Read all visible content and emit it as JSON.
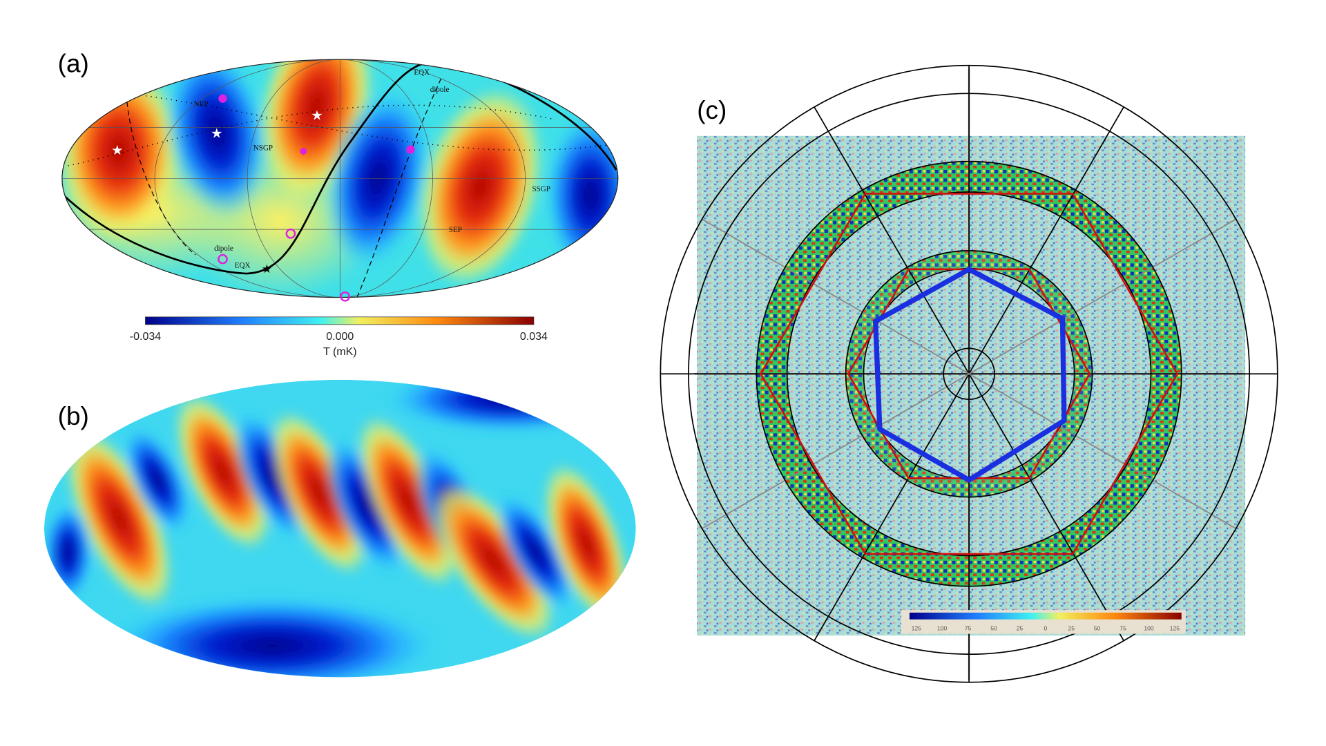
{
  "panels": [
    {
      "label": "(a)",
      "annotations": [
        "NEP",
        "NSGP",
        "EQX",
        "dipole",
        "SSGP",
        "SEP",
        "dipole",
        "EQX"
      ],
      "colorbar": {
        "ticks": [
          "-0.034",
          "0.000",
          "0.034"
        ],
        "label": "T (mK)"
      }
    },
    {
      "label": "(b)"
    },
    {
      "label": "(c)",
      "colorbar": {
        "ticks": [
          "125",
          "100",
          "75",
          "50",
          "25",
          "0",
          "25",
          "50",
          "75",
          "100",
          "125"
        ]
      }
    }
  ]
}
